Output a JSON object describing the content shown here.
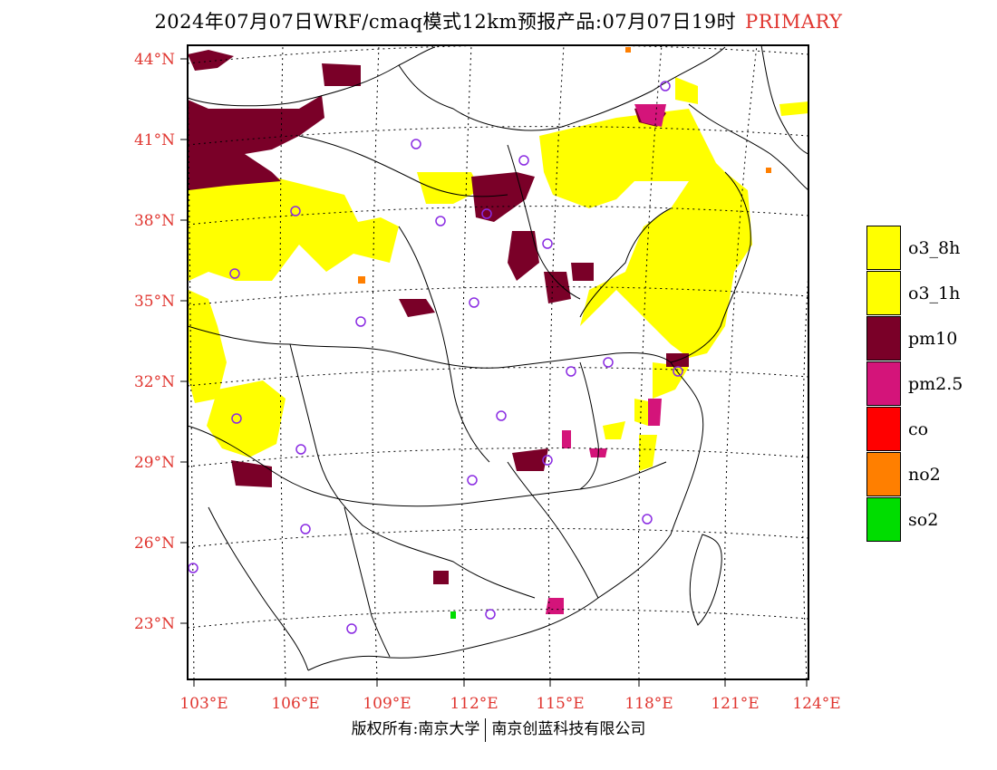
{
  "title": {
    "main": "2024年07月07日WRF/cmaq模式12km预报产品:07月07日19时",
    "tag": "PRIMARY"
  },
  "axes": {
    "lat_ticks": [
      "44°N",
      "41°N",
      "38°N",
      "35°N",
      "32°N",
      "29°N",
      "26°N",
      "23°N"
    ],
    "lon_ticks": [
      "103°E",
      "106°E",
      "109°E",
      "112°E",
      "115°E",
      "118°E",
      "121°E",
      "124°E"
    ]
  },
  "legend": [
    {
      "label": "o3_8h",
      "color": "#ffff00"
    },
    {
      "label": "o3_1h",
      "color": "#ffff00"
    },
    {
      "label": "pm10",
      "color": "#7a0028"
    },
    {
      "label": "pm2.5",
      "color": "#d4147a"
    },
    {
      "label": "co",
      "color": "#ff0000"
    },
    {
      "label": "no2",
      "color": "#ff7f00"
    },
    {
      "label": "so2",
      "color": "#00dd00"
    }
  ],
  "footer": {
    "left": "版权所有:南京大学",
    "right": "南京创蓝科技有限公司"
  },
  "colors": {
    "tick": "#e0352f",
    "station": "#8a2be2",
    "o3": "#ffff00",
    "pm10": "#7a0028",
    "pm25": "#d4147a"
  }
}
